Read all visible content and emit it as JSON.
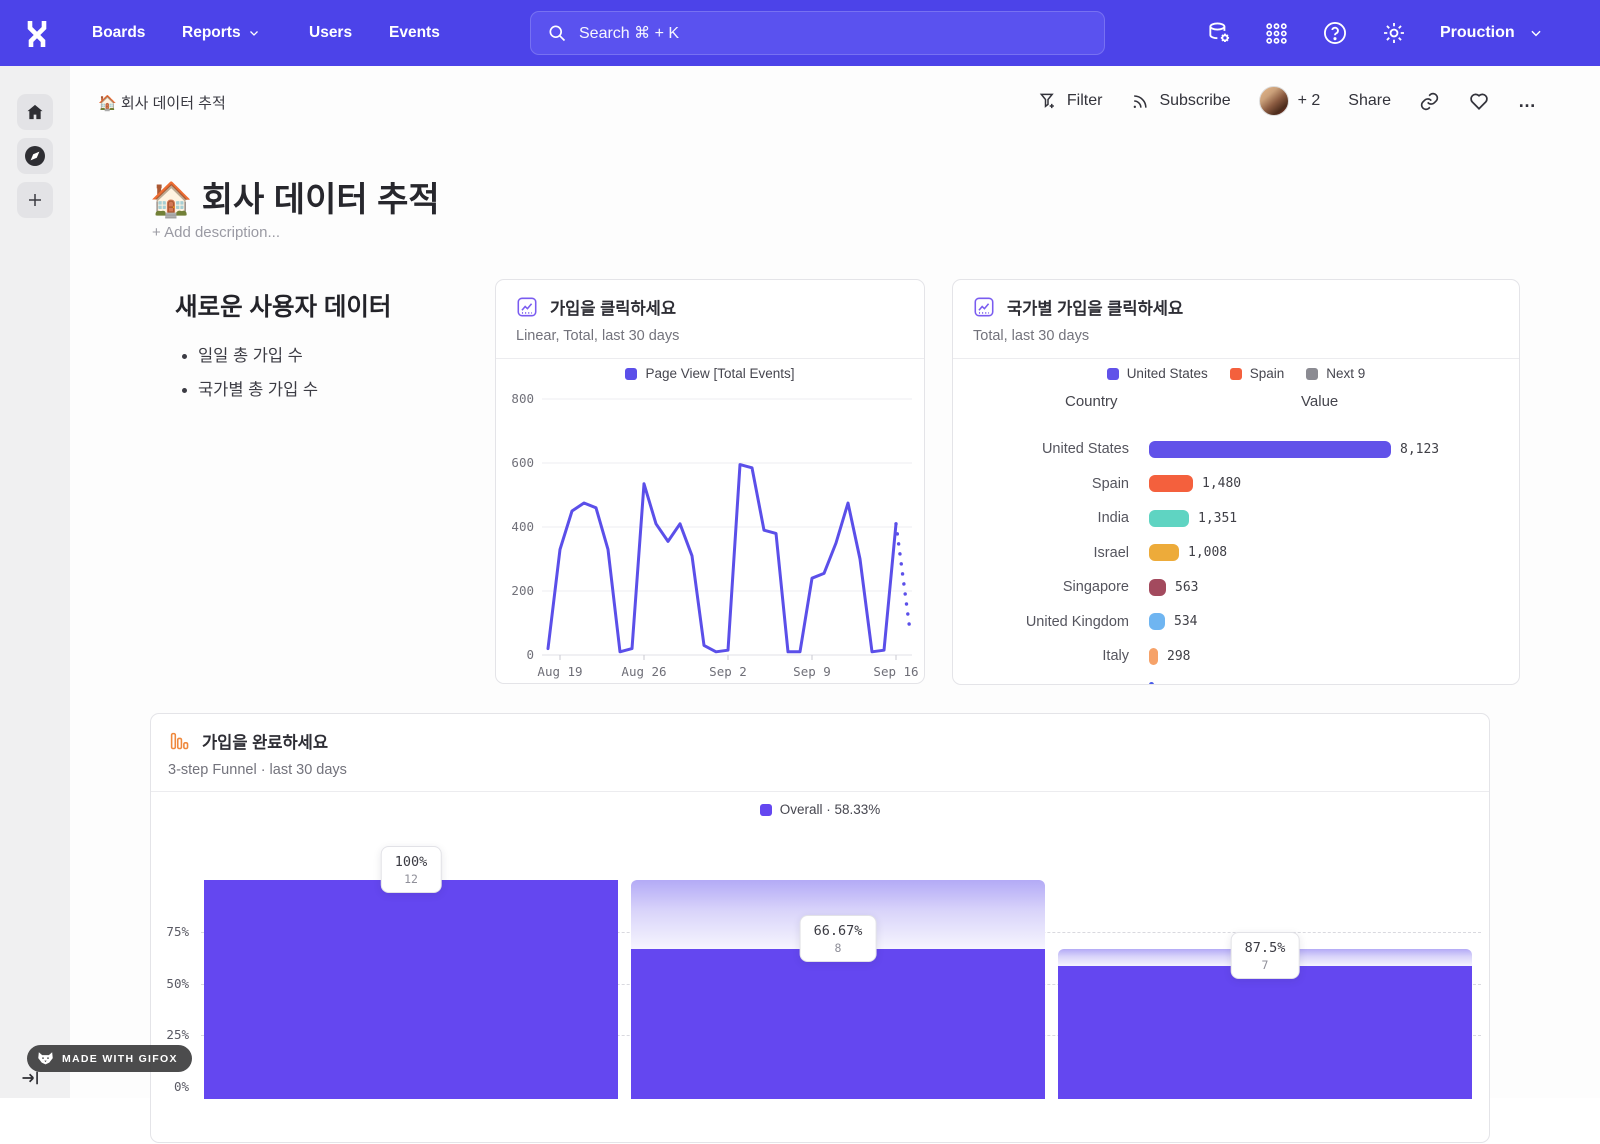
{
  "navbar": {
    "links": [
      "Boards",
      "Reports",
      "Users",
      "Events"
    ],
    "search_placeholder": "Search  ⌘ + K",
    "project": "Prouction"
  },
  "topbar": {
    "breadcrumb": "🏠 회사 데이터 추적",
    "filter_label": "Filter",
    "subscribe_label": "Subscribe",
    "collaborators_more": "+ 2",
    "share_label": "Share",
    "more_label": "…"
  },
  "page": {
    "title": "🏠 회사 데이터 추적",
    "add_description": "+ Add description..."
  },
  "text_card": {
    "heading": "새로운 사용자 데이터",
    "bullets": [
      "일일 총 가입 수",
      "국가별 총 가입 수"
    ]
  },
  "badge": {
    "made_with": "MADE WITH GIFOX"
  },
  "colors": {
    "navbar": "#4C43E9",
    "accent_purple": "#5B4FE9",
    "funnel_purple": "#6447F0",
    "funnel_icon_orange": "#EF883C",
    "chart_icon_purple": "#7A5CF0"
  },
  "icons": {
    "navbar_left": "mixpanel-logo",
    "navbar_right": [
      "data-management-icon",
      "apps-grid-icon",
      "help-icon",
      "settings-gear-icon",
      "chevron-down-icon"
    ],
    "search": "search-icon",
    "topbar": [
      "filter-icon",
      "rss-icon",
      "avatar",
      "link-icon",
      "heart-icon",
      "ellipsis-icon"
    ],
    "rail": [
      "home-icon",
      "compass-icon",
      "plus-icon",
      "tab-arrow-icon"
    ],
    "badge": "fox-icon"
  },
  "chart_data": [
    {
      "id": "signup_clicks_line",
      "type": "line",
      "title": "가입을 클릭하세요",
      "subtitle": "Linear, Total, last 30 days",
      "legend": [
        {
          "label": "Page View [Total Events]",
          "color": "#5B4FE9"
        }
      ],
      "x_tick_labels": [
        "Aug 19",
        "Aug 26",
        "Sep 2",
        "Sep 9",
        "Sep 16"
      ],
      "x_tick_indices": [
        1,
        8,
        15,
        22,
        29
      ],
      "y_ticks": [
        0,
        200,
        400,
        600,
        800
      ],
      "ylim": [
        0,
        830
      ],
      "grid": true,
      "values": [
        20,
        330,
        450,
        475,
        460,
        330,
        10,
        20,
        535,
        410,
        355,
        410,
        310,
        30,
        10,
        15,
        595,
        585,
        390,
        380,
        10,
        10,
        240,
        255,
        350,
        475,
        300,
        10,
        15,
        410
      ],
      "projection_tail": [
        410,
        95
      ]
    },
    {
      "id": "signups_by_country",
      "type": "bar",
      "title": "국가별 가입을 클릭하세요",
      "subtitle": "Total, last 30 days",
      "legend": [
        {
          "label": "United States",
          "color": "#6152E9"
        },
        {
          "label": "Spain",
          "color": "#F4603D"
        },
        {
          "label": "Next 9",
          "color": "#8B8B92"
        }
      ],
      "columns": [
        "Country",
        "Value"
      ],
      "xmax": 8123,
      "rows": [
        {
          "label": "United States",
          "value": 8123,
          "display": "8,123",
          "color": "#6152E9"
        },
        {
          "label": "Spain",
          "value": 1480,
          "display": "1,480",
          "color": "#F4603D"
        },
        {
          "label": "India",
          "value": 1351,
          "display": "1,351",
          "color": "#5FD4C2"
        },
        {
          "label": "Israel",
          "value": 1008,
          "display": "1,008",
          "color": "#EDAB3A"
        },
        {
          "label": "Singapore",
          "value": 563,
          "display": "563",
          "color": "#A34A5E"
        },
        {
          "label": "United Kingdom",
          "value": 534,
          "display": "534",
          "color": "#6FB5F1"
        },
        {
          "label": "Italy",
          "value": 298,
          "display": "298",
          "color": "#F6A269"
        },
        {
          "label": "",
          "value": 160,
          "display": "",
          "color": "#4A5CE8",
          "partial": true
        }
      ]
    },
    {
      "id": "signup_funnel",
      "type": "funnel",
      "title": "가입을 완료하세요",
      "subtitle": "3-step Funnel · last 30 days",
      "legend": [
        {
          "label": "Overall · 58.33%",
          "color": "#6447F0"
        }
      ],
      "y_ticks": [
        "0%",
        "25%",
        "50%",
        "75%"
      ],
      "steps": [
        {
          "overall_pct": 100,
          "label_pct": "100%",
          "count": "12"
        },
        {
          "overall_pct": 66.67,
          "label_pct": "66.67%",
          "count": "8"
        },
        {
          "overall_pct": 58.33,
          "label_pct": "87.5%",
          "count": "7"
        }
      ]
    }
  ]
}
